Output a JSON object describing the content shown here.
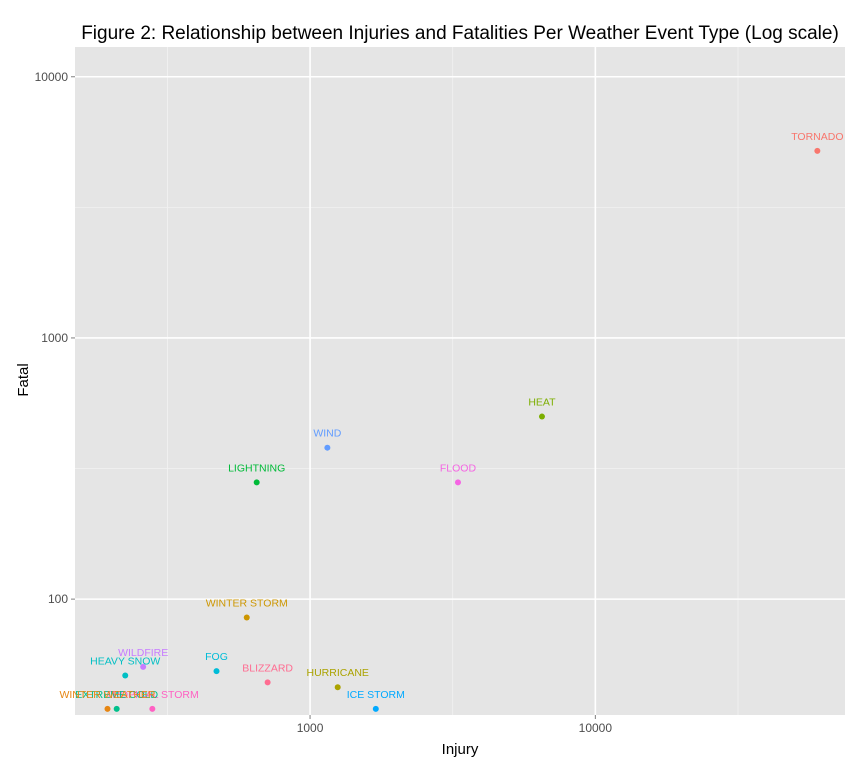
{
  "chart_data": {
    "type": "scatter",
    "title": "Figure 2: Relationship between Injuries and Fatalities Per Weather Event Type (Log scale)",
    "xlabel": "Injury",
    "ylabel": "Fatal",
    "xscale": "log10",
    "yscale": "log10",
    "xlim": [
      150,
      75000
    ],
    "ylim": [
      36,
      13000
    ],
    "xticks": [
      {
        "value": 1000,
        "label": "1000"
      },
      {
        "value": 10000,
        "label": "10000"
      }
    ],
    "yticks": [
      {
        "value": 100,
        "label": "100"
      },
      {
        "value": 1000,
        "label": "1000"
      },
      {
        "value": 10000,
        "label": "10000"
      }
    ],
    "grid": true,
    "background": "#e5e5e5",
    "points": [
      {
        "label": "TORNADO",
        "x": 60000,
        "y": 5200,
        "color": "#F8766D"
      },
      {
        "label": "HEAT",
        "x": 6500,
        "y": 500,
        "color": "#7CAE00"
      },
      {
        "label": "WIND",
        "x": 1150,
        "y": 380,
        "color": "#619CFF"
      },
      {
        "label": "LIGHTNING",
        "x": 650,
        "y": 280,
        "color": "#00BA38"
      },
      {
        "label": "FLOOD",
        "x": 3300,
        "y": 280,
        "color": "#F564E3"
      },
      {
        "label": "WINTER STORM",
        "x": 600,
        "y": 85,
        "color": "#CD9600"
      },
      {
        "label": "WILDFIRE",
        "x": 260,
        "y": 55,
        "color": "#C77CFF"
      },
      {
        "label": "HEAVY SNOW",
        "x": 225,
        "y": 51,
        "color": "#00BFC4"
      },
      {
        "label": "FOG",
        "x": 470,
        "y": 53,
        "color": "#00BCD8"
      },
      {
        "label": "BLIZZARD",
        "x": 710,
        "y": 48,
        "color": "#FF6C91"
      },
      {
        "label": "HURRICANE",
        "x": 1250,
        "y": 46,
        "color": "#ABA300"
      },
      {
        "label": "ICE STORM",
        "x": 1700,
        "y": 38,
        "color": "#00A9FF"
      },
      {
        "label": "TROPICAL STORM",
        "x": 280,
        "y": 38,
        "color": "#FF61C3"
      },
      {
        "label": "EXTREME COLD",
        "x": 210,
        "y": 38,
        "color": "#00C08B"
      },
      {
        "label": "WINTER WEATHER",
        "x": 195,
        "y": 38,
        "color": "#E68613"
      }
    ]
  }
}
